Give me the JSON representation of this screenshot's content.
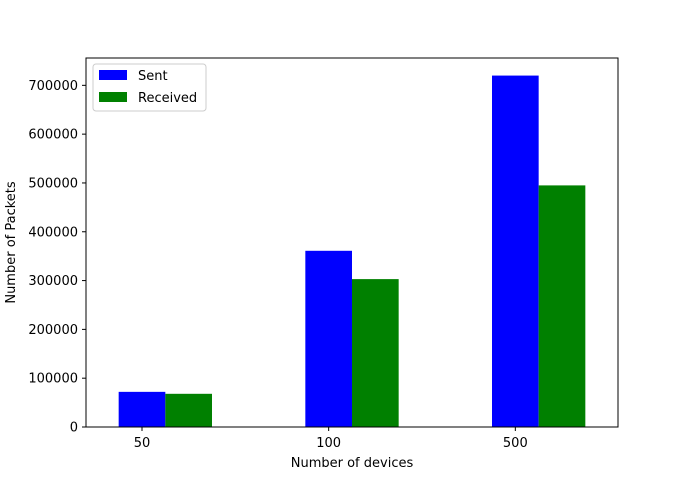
{
  "chart_data": {
    "type": "bar",
    "title": "",
    "xlabel": "Number of devices",
    "ylabel": "Number of Packets",
    "categories": [
      "50",
      "100",
      "500"
    ],
    "series": [
      {
        "name": "Sent",
        "color": "#0000ff",
        "values": [
          72000,
          361000,
          720000
        ]
      },
      {
        "name": "Received",
        "color": "#008000",
        "values": [
          68000,
          303000,
          495000
        ]
      }
    ],
    "ylim": [
      0,
      756000
    ],
    "yticks": [
      0,
      100000,
      200000,
      300000,
      400000,
      500000,
      600000,
      700000
    ],
    "ytick_labels": [
      "0",
      "100000",
      "200000",
      "300000",
      "400000",
      "500000",
      "600000",
      "700000"
    ],
    "grid": false,
    "legend_position": "top-left"
  }
}
